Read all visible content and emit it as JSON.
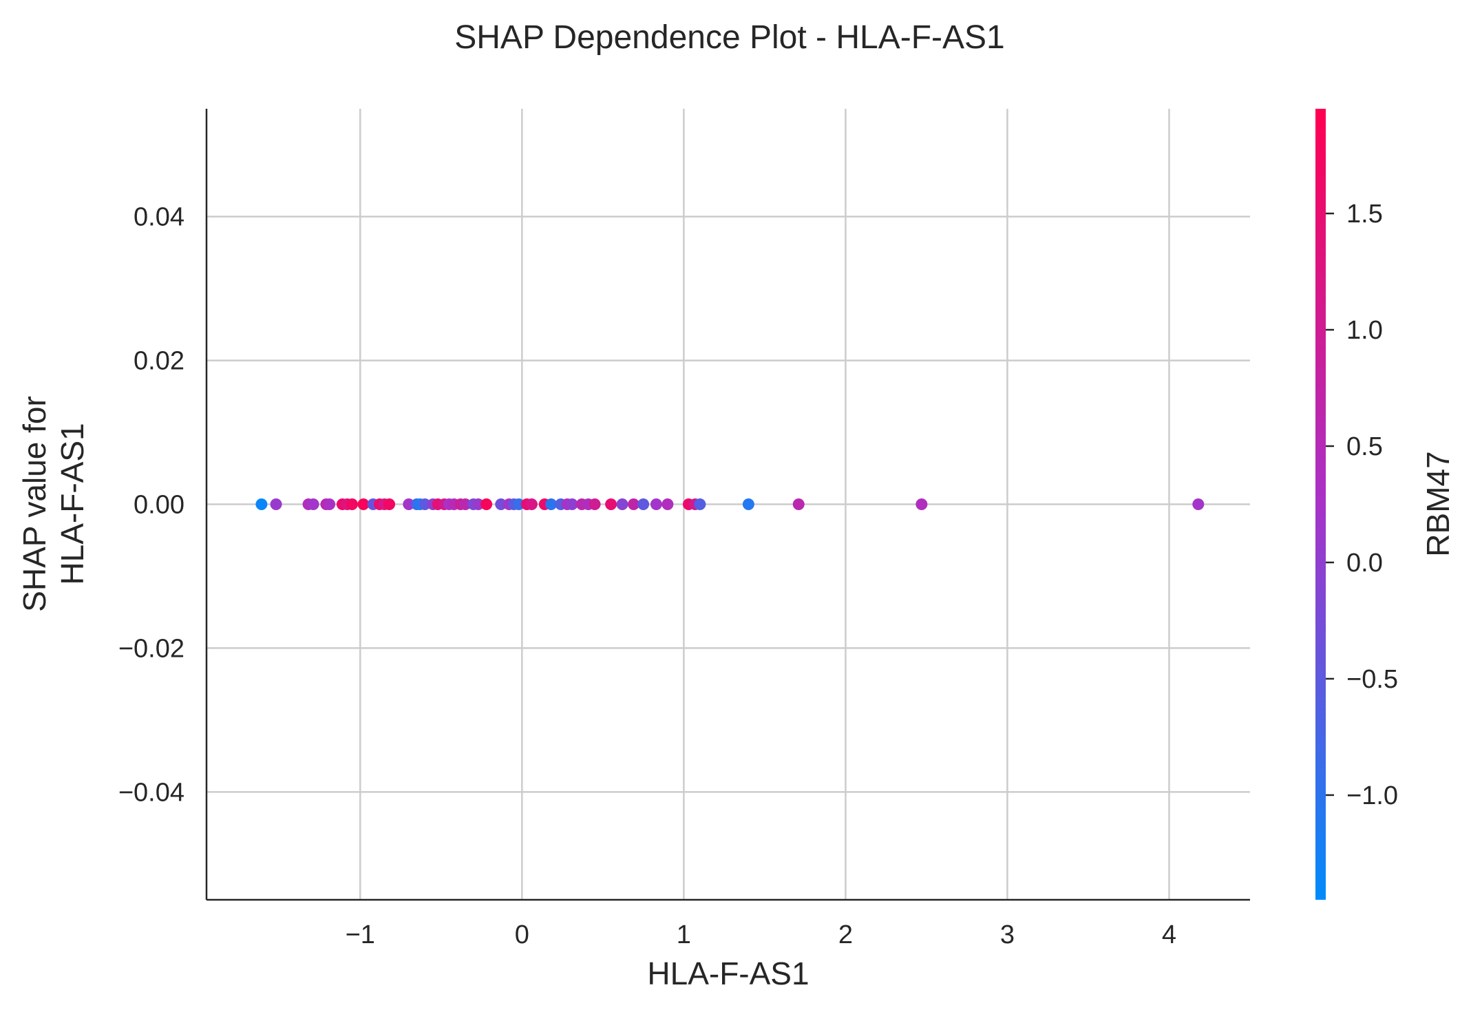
{
  "chart_data": {
    "type": "scatter",
    "title": "SHAP Dependence Plot - HLA-F-AS1",
    "xlabel": "HLA-F-AS1",
    "ylabel_lines": [
      "SHAP value for",
      "HLA-F-AS1"
    ],
    "xlim": [
      -1.95,
      4.5
    ],
    "ylim": [
      -0.055,
      0.055
    ],
    "xticks": [
      -1,
      0,
      1,
      2,
      3,
      4
    ],
    "xtick_labels": [
      "−1",
      "0",
      "1",
      "2",
      "3",
      "4"
    ],
    "yticks": [
      0.04,
      0.02,
      0.0,
      -0.02,
      -0.04
    ],
    "ytick_labels": [
      "0.04",
      "0.02",
      "0.00",
      "−0.02",
      "−0.04"
    ],
    "grid": true,
    "colorbar": {
      "label": "RBM47",
      "range": [
        -1.45,
        1.95
      ],
      "ticks": [
        1.5,
        1.0,
        0.5,
        0.0,
        -0.5,
        -1.0
      ],
      "tick_labels": [
        "1.5",
        "1.0",
        "0.5",
        "0.0",
        "−0.5",
        "−1.0"
      ],
      "colors": [
        "#008bfb",
        "#ff0051"
      ],
      "mid_color": "#a832c8"
    },
    "points": [
      {
        "x": -1.61,
        "y": 0.0,
        "c": -1.35
      },
      {
        "x": -1.52,
        "y": 0.0,
        "c": 0.1
      },
      {
        "x": -1.32,
        "y": 0.0,
        "c": 0.4
      },
      {
        "x": -1.29,
        "y": 0.0,
        "c": 0.2
      },
      {
        "x": -1.21,
        "y": 0.0,
        "c": 0.6
      },
      {
        "x": -1.19,
        "y": 0.0,
        "c": 0.3
      },
      {
        "x": -1.11,
        "y": 0.0,
        "c": 1.6
      },
      {
        "x": -1.08,
        "y": 0.0,
        "c": 1.3
      },
      {
        "x": -1.05,
        "y": 0.0,
        "c": 1.7
      },
      {
        "x": -0.98,
        "y": 0.0,
        "c": 1.8
      },
      {
        "x": -0.92,
        "y": 0.0,
        "c": -0.4
      },
      {
        "x": -0.88,
        "y": 0.0,
        "c": 1.5
      },
      {
        "x": -0.85,
        "y": 0.0,
        "c": 1.2
      },
      {
        "x": -0.82,
        "y": 0.0,
        "c": 1.7
      },
      {
        "x": -0.7,
        "y": 0.0,
        "c": 0.2
      },
      {
        "x": -0.65,
        "y": 0.0,
        "c": -0.8
      },
      {
        "x": -0.63,
        "y": 0.0,
        "c": -1.1
      },
      {
        "x": -0.6,
        "y": 0.0,
        "c": -0.5
      },
      {
        "x": -0.55,
        "y": 0.0,
        "c": 0.0
      },
      {
        "x": -0.52,
        "y": 0.0,
        "c": 1.4
      },
      {
        "x": -0.48,
        "y": 0.0,
        "c": 1.1
      },
      {
        "x": -0.45,
        "y": 0.0,
        "c": 0.3
      },
      {
        "x": -0.42,
        "y": 0.0,
        "c": 0.5
      },
      {
        "x": -0.38,
        "y": 0.0,
        "c": 0.9
      },
      {
        "x": -0.35,
        "y": 0.0,
        "c": 0.6
      },
      {
        "x": -0.3,
        "y": 0.0,
        "c": -0.2
      },
      {
        "x": -0.27,
        "y": 0.0,
        "c": 0.1
      },
      {
        "x": -0.22,
        "y": 0.0,
        "c": 1.8
      },
      {
        "x": -0.13,
        "y": 0.0,
        "c": -0.3
      },
      {
        "x": -0.08,
        "y": 0.0,
        "c": 0.2
      },
      {
        "x": -0.05,
        "y": 0.0,
        "c": -0.5
      },
      {
        "x": -0.02,
        "y": 0.0,
        "c": -0.9
      },
      {
        "x": 0.03,
        "y": 0.0,
        "c": 1.5
      },
      {
        "x": 0.06,
        "y": 0.0,
        "c": 1.2
      },
      {
        "x": 0.14,
        "y": 0.0,
        "c": 1.6
      },
      {
        "x": 0.18,
        "y": 0.0,
        "c": -1.0
      },
      {
        "x": 0.24,
        "y": 0.0,
        "c": -0.6
      },
      {
        "x": 0.28,
        "y": 0.0,
        "c": 0.3
      },
      {
        "x": 0.31,
        "y": 0.0,
        "c": 0.0
      },
      {
        "x": 0.37,
        "y": 0.0,
        "c": 0.6
      },
      {
        "x": 0.41,
        "y": 0.0,
        "c": 0.4
      },
      {
        "x": 0.45,
        "y": 0.0,
        "c": 1.0
      },
      {
        "x": 0.55,
        "y": 0.0,
        "c": 1.5
      },
      {
        "x": 0.62,
        "y": 0.0,
        "c": -0.1
      },
      {
        "x": 0.69,
        "y": 0.0,
        "c": 0.7
      },
      {
        "x": 0.75,
        "y": 0.0,
        "c": -0.5
      },
      {
        "x": 0.83,
        "y": 0.0,
        "c": 0.2
      },
      {
        "x": 0.9,
        "y": 0.0,
        "c": 0.4
      },
      {
        "x": 1.03,
        "y": 0.0,
        "c": 1.6
      },
      {
        "x": 1.07,
        "y": 0.0,
        "c": 1.0
      },
      {
        "x": 1.1,
        "y": 0.0,
        "c": -0.6
      },
      {
        "x": 1.4,
        "y": 0.0,
        "c": -1.1
      },
      {
        "x": 1.71,
        "y": 0.0,
        "c": 0.6
      },
      {
        "x": 2.47,
        "y": 0.0,
        "c": 0.4
      },
      {
        "x": 4.18,
        "y": 0.0,
        "c": 0.2
      }
    ]
  }
}
